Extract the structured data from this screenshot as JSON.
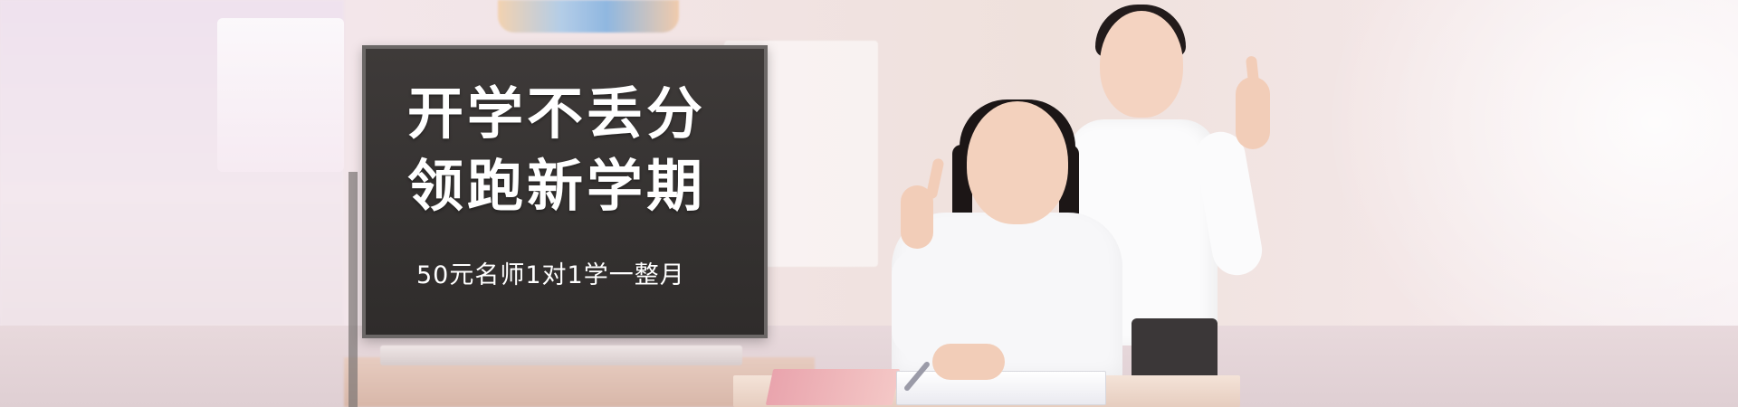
{
  "banner": {
    "headline": {
      "line1": "开学不丢分",
      "line2": "领跑新学期"
    },
    "subtitle": "50元名师1对1学一整月"
  }
}
